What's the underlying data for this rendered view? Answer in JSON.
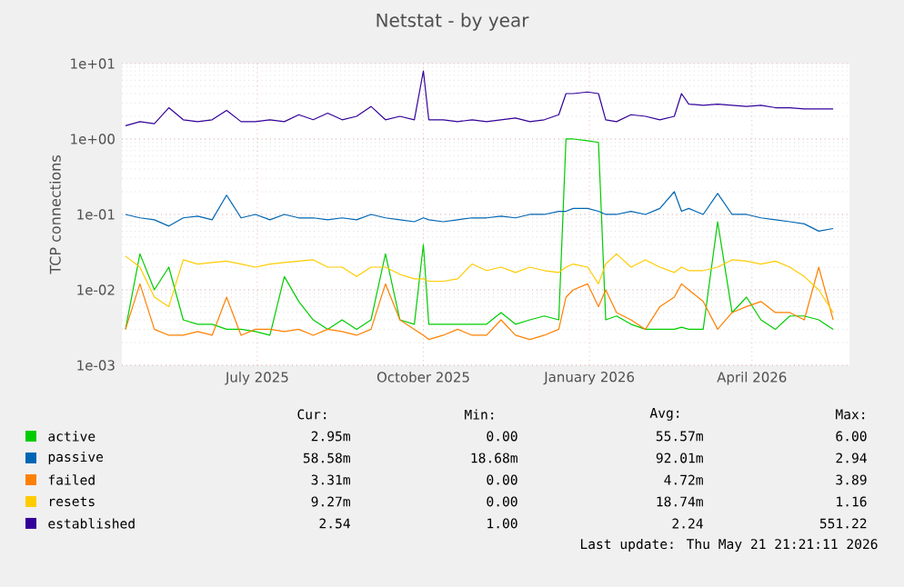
{
  "chart_data": {
    "type": "line",
    "title": "Netstat - by year",
    "ylabel": "TCP connections",
    "log": "y",
    "grid": true,
    "legend": "bottom",
    "xlim": [
      "2025-04-17",
      "2026-05-25"
    ],
    "xticks": [
      {
        "value": "2025-07-01",
        "label": "July 2025"
      },
      {
        "value": "2025-10-01",
        "label": "October 2025"
      },
      {
        "value": "2026-01-01",
        "label": "January 2026"
      },
      {
        "value": "2026-04-01",
        "label": "April 2026"
      }
    ],
    "ylim": [
      0.001,
      10
    ],
    "yticks": [
      {
        "value": 0.001,
        "label": "1e-03"
      },
      {
        "value": 0.01,
        "label": "1e-02"
      },
      {
        "value": 0.1,
        "label": "1e-01"
      },
      {
        "value": 1,
        "label": "1e+00"
      },
      {
        "value": 10,
        "label": "1e+01"
      }
    ],
    "x": [
      "2025-04-19",
      "2025-04-27",
      "2025-05-05",
      "2025-05-13",
      "2025-05-21",
      "2025-05-29",
      "2025-06-06",
      "2025-06-14",
      "2025-06-22",
      "2025-06-30",
      "2025-07-08",
      "2025-07-16",
      "2025-07-24",
      "2025-08-01",
      "2025-08-09",
      "2025-08-17",
      "2025-08-25",
      "2025-09-02",
      "2025-09-10",
      "2025-09-18",
      "2025-09-26",
      "2025-10-01",
      "2025-10-04",
      "2025-10-12",
      "2025-10-20",
      "2025-10-28",
      "2025-11-05",
      "2025-11-13",
      "2025-11-21",
      "2025-11-29",
      "2025-12-07",
      "2025-12-15",
      "2025-12-19",
      "2025-12-23",
      "2025-12-31",
      "2026-01-06",
      "2026-01-10",
      "2026-01-16",
      "2026-01-24",
      "2026-02-01",
      "2026-02-09",
      "2026-02-17",
      "2026-02-21",
      "2026-02-25",
      "2026-03-05",
      "2026-03-13",
      "2026-03-21",
      "2026-03-29",
      "2026-04-06",
      "2026-04-14",
      "2026-04-22",
      "2026-04-30",
      "2026-05-08",
      "2026-05-16"
    ],
    "series": [
      {
        "name": "active",
        "color": "#00cc00",
        "values": [
          0.003,
          0.03,
          0.01,
          0.02,
          0.004,
          0.0035,
          0.0035,
          0.003,
          0.003,
          0.0028,
          0.0025,
          0.015,
          0.007,
          0.004,
          0.003,
          0.004,
          0.003,
          0.004,
          0.03,
          0.004,
          0.0035,
          0.04,
          0.0035,
          0.0035,
          0.0035,
          0.0035,
          0.0035,
          0.005,
          0.0035,
          0.004,
          0.0045,
          0.004,
          1.0,
          1.0,
          0.95,
          0.9,
          0.004,
          0.0045,
          0.0035,
          0.003,
          0.003,
          0.003,
          0.0032,
          0.003,
          0.003,
          0.08,
          0.005,
          0.008,
          0.004,
          0.003,
          0.0045,
          0.0045,
          0.004,
          0.003
        ]
      },
      {
        "name": "passive",
        "color": "#0066b3",
        "values": [
          0.1,
          0.09,
          0.085,
          0.07,
          0.09,
          0.095,
          0.085,
          0.18,
          0.09,
          0.1,
          0.085,
          0.1,
          0.09,
          0.09,
          0.085,
          0.09,
          0.085,
          0.1,
          0.09,
          0.085,
          0.08,
          0.09,
          0.085,
          0.08,
          0.085,
          0.09,
          0.09,
          0.095,
          0.09,
          0.1,
          0.1,
          0.11,
          0.11,
          0.12,
          0.12,
          0.11,
          0.1,
          0.1,
          0.11,
          0.1,
          0.12,
          0.2,
          0.11,
          0.12,
          0.1,
          0.19,
          0.1,
          0.1,
          0.09,
          0.085,
          0.08,
          0.075,
          0.06,
          0.065
        ]
      },
      {
        "name": "failed",
        "color": "#ff8000",
        "values": [
          0.003,
          0.012,
          0.003,
          0.0025,
          0.0025,
          0.0028,
          0.0025,
          0.008,
          0.0025,
          0.003,
          0.003,
          0.0028,
          0.003,
          0.0025,
          0.003,
          0.0028,
          0.0025,
          0.003,
          0.012,
          0.004,
          0.003,
          0.0025,
          0.0022,
          0.0025,
          0.003,
          0.0025,
          0.0025,
          0.004,
          0.0025,
          0.0022,
          0.0025,
          0.003,
          0.008,
          0.01,
          0.012,
          0.006,
          0.01,
          0.005,
          0.004,
          0.003,
          0.006,
          0.008,
          0.012,
          0.01,
          0.007,
          0.003,
          0.005,
          0.006,
          0.007,
          0.005,
          0.005,
          0.004,
          0.02,
          0.004
        ]
      },
      {
        "name": "resets",
        "color": "#ffcc00",
        "values": [
          0.028,
          0.02,
          0.008,
          0.006,
          0.025,
          0.022,
          0.023,
          0.024,
          0.022,
          0.02,
          0.022,
          0.023,
          0.024,
          0.025,
          0.02,
          0.02,
          0.015,
          0.02,
          0.02,
          0.016,
          0.014,
          0.014,
          0.013,
          0.013,
          0.014,
          0.022,
          0.018,
          0.02,
          0.017,
          0.02,
          0.018,
          0.017,
          0.02,
          0.022,
          0.02,
          0.012,
          0.022,
          0.03,
          0.02,
          0.025,
          0.02,
          0.017,
          0.02,
          0.018,
          0.018,
          0.02,
          0.025,
          0.024,
          0.022,
          0.024,
          0.02,
          0.015,
          0.01,
          0.005
        ]
      },
      {
        "name": "established",
        "color": "#330099",
        "values": [
          1.5,
          1.7,
          1.6,
          2.6,
          1.8,
          1.7,
          1.8,
          2.4,
          1.7,
          1.7,
          1.8,
          1.7,
          2.1,
          1.8,
          2.2,
          1.8,
          2.0,
          2.7,
          1.8,
          2.0,
          1.8,
          8.0,
          1.8,
          1.8,
          1.7,
          1.8,
          1.7,
          1.8,
          1.9,
          1.7,
          1.8,
          2.1,
          4.0,
          4.0,
          4.2,
          4.0,
          1.8,
          1.7,
          2.1,
          2.0,
          1.8,
          2.0,
          4.0,
          2.9,
          2.8,
          2.9,
          2.8,
          2.7,
          2.8,
          2.6,
          2.6,
          2.5,
          2.5,
          2.5
        ]
      }
    ],
    "annotations": [
      "Cur:",
      "Min:",
      "Avg:",
      "Max:",
      "2.95m",
      "0.00",
      "55.57m",
      "6.00",
      "58.58m",
      "18.68m",
      "92.01m",
      "2.94",
      "3.31m",
      "0.00",
      "4.72m",
      "3.89",
      "9.27m",
      "0.00",
      "18.74m",
      "1.16",
      "2.54",
      "1.00",
      "2.24",
      "551.22",
      "Last update: Thu May 21 21:21:11 2026"
    ]
  }
}
